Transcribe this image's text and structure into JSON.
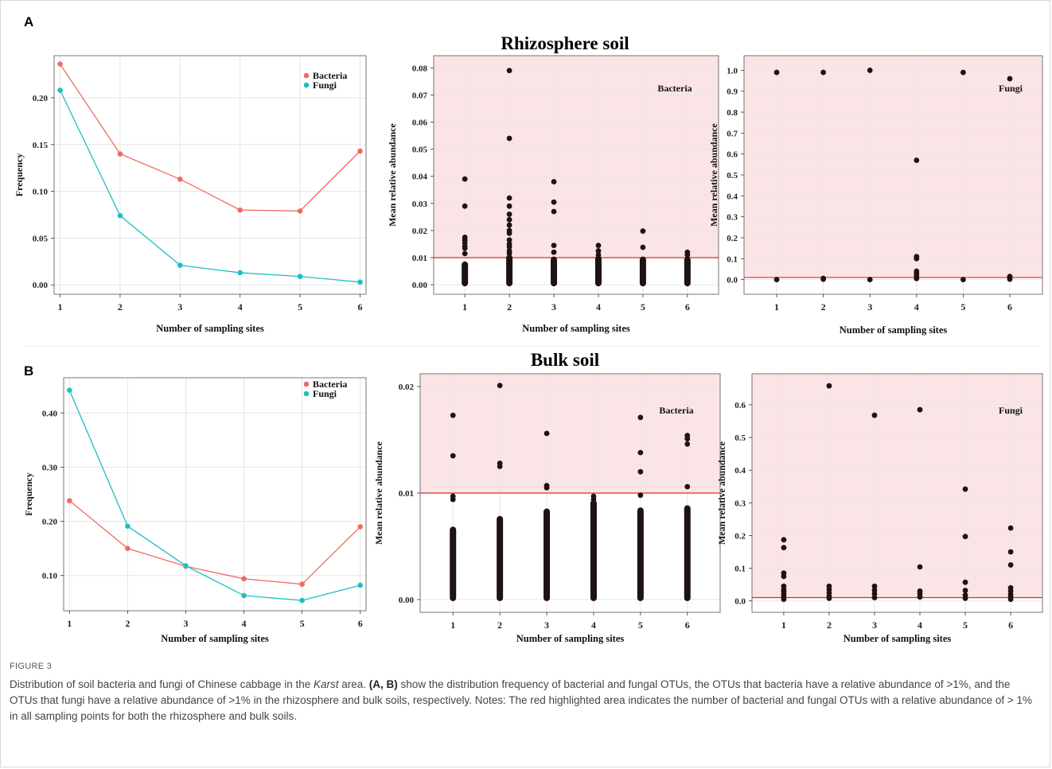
{
  "panels": [
    {
      "letter": "A",
      "title": "Rhizosphere soil"
    },
    {
      "letter": "B",
      "title": "Bulk soil"
    }
  ],
  "colors": {
    "bacteria": "#ef6b62",
    "fungi": "#1fbfc4",
    "threshold": "#e8262b",
    "highlight": "#fbe4e6",
    "point": "#1e1212"
  },
  "caption": {
    "label": "FIGURE 3",
    "p1": "Distribution of soil bacteria and fungi of Chinese cabbage in the ",
    "italic": "Karst",
    "p2": " area. ",
    "bold": "(A, B)",
    "p3": " show the distribution frequency of bacterial and fungal OTUs, the OTUs that bacteria have a relative abundance of >1%, and the OTUs that fungi have a relative abundance of >1% in the rhizosphere and bulk soils, respectively. Notes: The red highlighted area indicates the number of bacterial and fungal OTUs with a relative abundance of > 1% in all sampling points for both the rhizosphere and bulk soils."
  },
  "chart_data": [
    {
      "type": "line",
      "panel": "A",
      "x": [
        1,
        2,
        3,
        4,
        5,
        6
      ],
      "series": [
        {
          "name": "Bacteria",
          "values": [
            0.236,
            0.14,
            0.113,
            0.08,
            0.079,
            0.143
          ]
        },
        {
          "name": "Fungi",
          "values": [
            0.208,
            0.074,
            0.021,
            0.013,
            0.009,
            0.003
          ]
        }
      ],
      "xlabel": "Number of sampling sites",
      "ylabel": "Frequency",
      "yticks": [
        "0.00",
        "0.05",
        "0.10",
        "0.15",
        "0.20"
      ],
      "ylim": [
        -0.01,
        0.245
      ],
      "legend": "top-right",
      "grid": true
    },
    {
      "type": "scatter",
      "panel": "A",
      "label": "Bacteria",
      "x": [
        1,
        2,
        3,
        4,
        5,
        6
      ],
      "points": [
        [
          1,
          0.039
        ],
        [
          1,
          0.029
        ],
        [
          1,
          0.0175
        ],
        [
          1,
          0.0165
        ],
        [
          1,
          0.0155
        ],
        [
          1,
          0.0142
        ],
        [
          1,
          0.0135
        ],
        [
          1,
          0.0115
        ],
        [
          2,
          0.079
        ],
        [
          2,
          0.054
        ],
        [
          2,
          0.032
        ],
        [
          2,
          0.029
        ],
        [
          2,
          0.026
        ],
        [
          2,
          0.024
        ],
        [
          2,
          0.022
        ],
        [
          2,
          0.02
        ],
        [
          2,
          0.019
        ],
        [
          2,
          0.0165
        ],
        [
          2,
          0.015
        ],
        [
          2,
          0.014
        ],
        [
          2,
          0.0125
        ],
        [
          2,
          0.0115
        ],
        [
          3,
          0.038
        ],
        [
          3,
          0.0305
        ],
        [
          3,
          0.027
        ],
        [
          3,
          0.0145
        ],
        [
          3,
          0.012
        ],
        [
          4,
          0.0145
        ],
        [
          4,
          0.0125
        ],
        [
          4,
          0.011
        ],
        [
          5,
          0.0198
        ],
        [
          5,
          0.0138
        ],
        [
          6,
          0.012
        ],
        [
          6,
          0.011
        ]
      ],
      "dense_bands": [
        [
          1,
          0.0,
          0.008
        ],
        [
          2,
          0.0,
          0.0105
        ],
        [
          3,
          0.0,
          0.0098
        ],
        [
          4,
          0.0,
          0.0102
        ],
        [
          5,
          0.0,
          0.0098
        ],
        [
          6,
          0.0,
          0.0098
        ]
      ],
      "threshold": 0.01,
      "xlabel": "Number of sampling sites",
      "ylabel": "Mean relative abundance",
      "yticks": [
        "0.00",
        "0.01",
        "0.02",
        "0.03",
        "0.04",
        "0.05",
        "0.06",
        "0.07",
        "0.08"
      ],
      "ylim": [
        -0.0035,
        0.0845
      ]
    },
    {
      "type": "scatter",
      "panel": "A",
      "label": "Fungi",
      "x": [
        1,
        2,
        3,
        4,
        5,
        6
      ],
      "points": [
        [
          1,
          0.99
        ],
        [
          1,
          0.0
        ],
        [
          2,
          0.99
        ],
        [
          2,
          0.006
        ],
        [
          2,
          0.002
        ],
        [
          3,
          1.0
        ],
        [
          3,
          0.0
        ],
        [
          4,
          0.57
        ],
        [
          4,
          0.11
        ],
        [
          4,
          0.1
        ],
        [
          4,
          0.04
        ],
        [
          4,
          0.03
        ],
        [
          4,
          0.02
        ],
        [
          4,
          0.01
        ],
        [
          4,
          0.005
        ],
        [
          5,
          0.99
        ],
        [
          5,
          0.0
        ],
        [
          6,
          0.96
        ],
        [
          6,
          0.015
        ],
        [
          6,
          0.008
        ],
        [
          6,
          0.002
        ]
      ],
      "threshold": 0.01,
      "xlabel": "Number of sampling sites",
      "ylabel": "Mean relative abundance",
      "yticks": [
        "0.0",
        "0.1",
        "0.2",
        "0.3",
        "0.4",
        "0.5",
        "0.6",
        "0.7",
        "0.8",
        "0.9",
        "1.0"
      ],
      "ylim": [
        -0.07,
        1.07
      ]
    },
    {
      "type": "line",
      "panel": "B",
      "x": [
        1,
        2,
        3,
        4,
        5,
        6
      ],
      "series": [
        {
          "name": "Bacteria",
          "values": [
            0.238,
            0.15,
            0.117,
            0.094,
            0.084,
            0.19
          ]
        },
        {
          "name": "Fungi",
          "values": [
            0.442,
            0.191,
            0.118,
            0.063,
            0.054,
            0.082
          ]
        }
      ],
      "xlabel": "Number of sampling sites",
      "ylabel": "Frequency",
      "yticks": [
        "0.10",
        "0.20",
        "0.30",
        "0.40"
      ],
      "ylim": [
        0.035,
        0.465
      ],
      "legend": "top-right",
      "grid": true
    },
    {
      "type": "scatter",
      "panel": "B",
      "label": "Bacteria",
      "x": [
        1,
        2,
        3,
        4,
        5,
        6
      ],
      "points": [
        [
          1,
          0.0173
        ],
        [
          1,
          0.0135
        ],
        [
          1,
          0.0097
        ],
        [
          1,
          0.0094
        ],
        [
          2,
          0.0201
        ],
        [
          2,
          0.0128
        ],
        [
          2,
          0.0125
        ],
        [
          3,
          0.0156
        ],
        [
          3,
          0.0107
        ],
        [
          3,
          0.0105
        ],
        [
          4,
          0.0097
        ],
        [
          4,
          0.0094
        ],
        [
          5,
          0.0171
        ],
        [
          5,
          0.0138
        ],
        [
          5,
          0.012
        ],
        [
          5,
          0.0098
        ],
        [
          6,
          0.0154
        ],
        [
          6,
          0.0151
        ],
        [
          6,
          0.0146
        ],
        [
          6,
          0.0106
        ]
      ],
      "dense_bands": [
        [
          1,
          0.0,
          0.0067
        ],
        [
          2,
          0.0,
          0.0077
        ],
        [
          3,
          0.0,
          0.0084
        ],
        [
          4,
          0.0,
          0.0092
        ],
        [
          5,
          0.0,
          0.0085
        ],
        [
          6,
          0.0,
          0.0087
        ]
      ],
      "threshold": 0.01,
      "xlabel": "Number of sampling sites",
      "ylabel": "Mean relative abundance",
      "yticks": [
        "0.00",
        "0.01",
        "0.02"
      ],
      "ylim": [
        -0.0012,
        0.0212
      ]
    },
    {
      "type": "scatter",
      "panel": "B",
      "label": "Fungi",
      "x": [
        1,
        2,
        3,
        4,
        5,
        6
      ],
      "points": [
        [
          1,
          0.187
        ],
        [
          1,
          0.163
        ],
        [
          1,
          0.085
        ],
        [
          1,
          0.075
        ],
        [
          1,
          0.045
        ],
        [
          1,
          0.035
        ],
        [
          1,
          0.028
        ],
        [
          1,
          0.02
        ],
        [
          1,
          0.012
        ],
        [
          1,
          0.005
        ],
        [
          2,
          0.658
        ],
        [
          2,
          0.045
        ],
        [
          2,
          0.035
        ],
        [
          2,
          0.025
        ],
        [
          2,
          0.015
        ],
        [
          2,
          0.008
        ],
        [
          3,
          0.568
        ],
        [
          3,
          0.045
        ],
        [
          3,
          0.033
        ],
        [
          3,
          0.022
        ],
        [
          3,
          0.01
        ],
        [
          4,
          0.585
        ],
        [
          4,
          0.104
        ],
        [
          4,
          0.03
        ],
        [
          4,
          0.022
        ],
        [
          4,
          0.012
        ],
        [
          5,
          0.342
        ],
        [
          5,
          0.197
        ],
        [
          5,
          0.057
        ],
        [
          5,
          0.032
        ],
        [
          5,
          0.018
        ],
        [
          5,
          0.008
        ],
        [
          6,
          0.223
        ],
        [
          6,
          0.15
        ],
        [
          6,
          0.11
        ],
        [
          6,
          0.04
        ],
        [
          6,
          0.03
        ],
        [
          6,
          0.02
        ],
        [
          6,
          0.012
        ],
        [
          6,
          0.005
        ]
      ],
      "threshold": 0.01,
      "xlabel": "Number of sampling sites",
      "ylabel": "Mean relative abundance",
      "yticks": [
        "0.0",
        "0.1",
        "0.2",
        "0.3",
        "0.4",
        "0.5",
        "0.6"
      ],
      "ylim": [
        -0.035,
        0.695
      ]
    }
  ]
}
